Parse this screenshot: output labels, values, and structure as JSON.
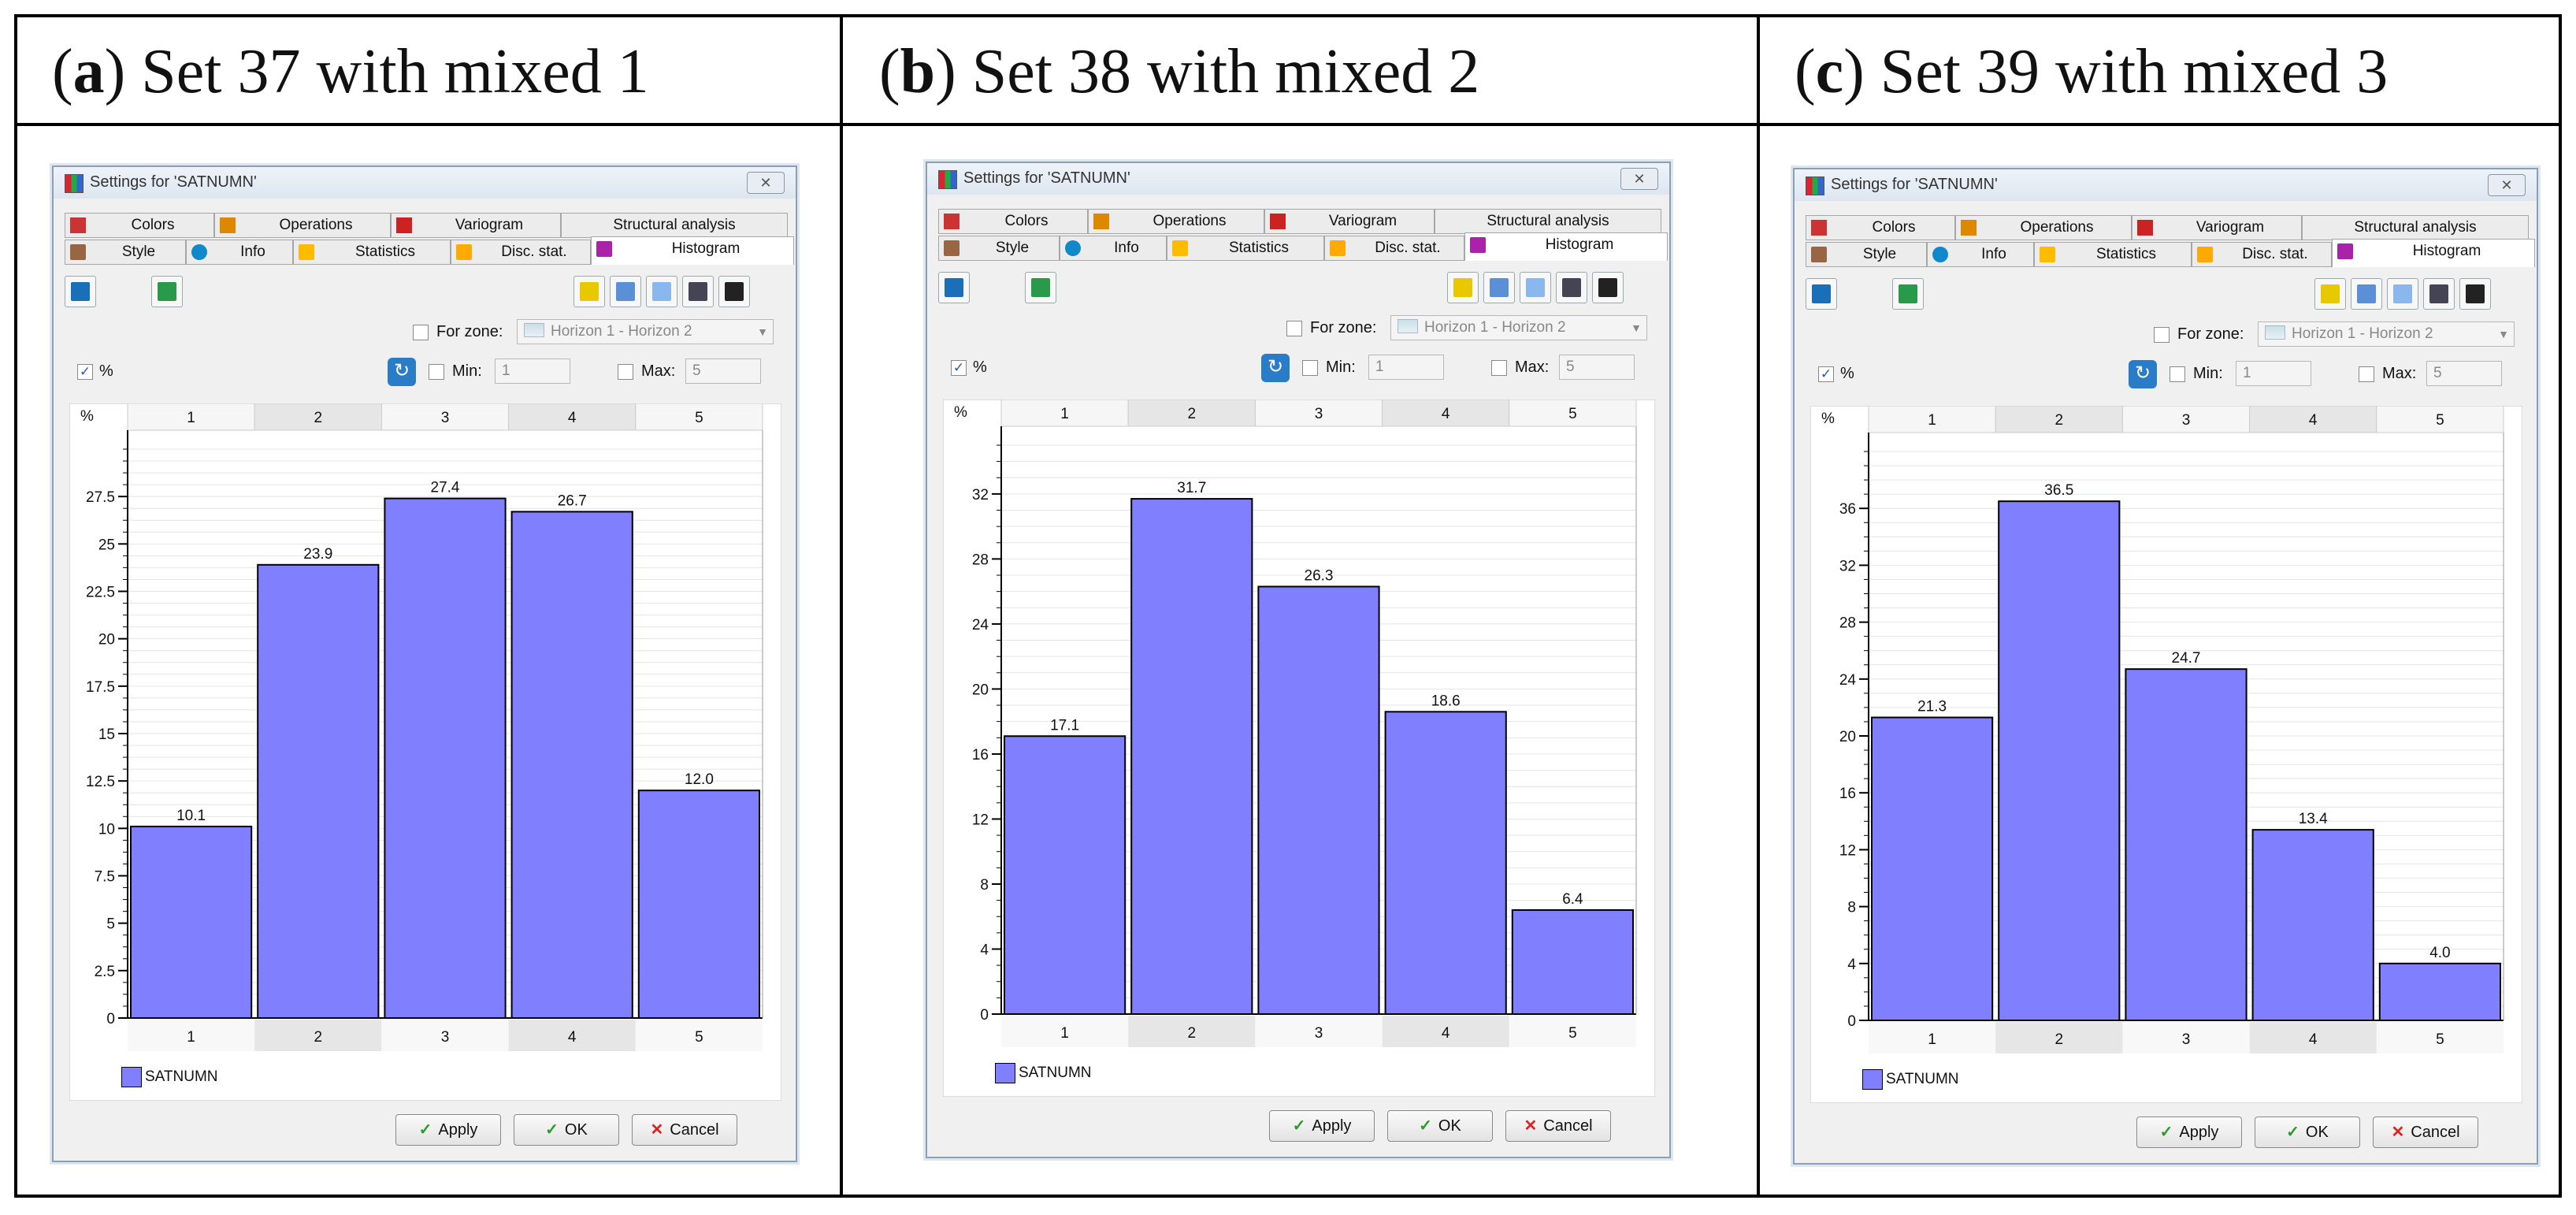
{
  "captions": [
    {
      "letter": "a",
      "text": " Set 37 with mixed 1"
    },
    {
      "letter": "b",
      "text": " Set 38 with mixed 2"
    },
    {
      "letter": "c",
      "text": " Set 39 with mixed 3"
    }
  ],
  "dialog": {
    "title": "Settings for 'SATNUMN'",
    "close_glyph": "✕",
    "tabs_row1": [
      "Colors",
      "Operations",
      "Variogram",
      "Structural analysis"
    ],
    "tabs_row2": [
      "Style",
      "Info",
      "Statistics",
      "Disc. stat.",
      "Histogram"
    ],
    "for_zone_label": "For zone:",
    "zone_value": "Horizon 1 - Horizon 2",
    "percent_label": "%",
    "min_label": "Min:",
    "min_value": "1",
    "max_label": "Max:",
    "max_value": "5",
    "legend_label": "SATNUMN",
    "apply_label": "Apply",
    "ok_label": "OK",
    "cancel_label": "Cancel",
    "icons": [
      "filter-icon",
      "color-grid-icon",
      "cube-icon",
      "ruler-icon",
      "help-icon",
      "print-icon",
      "camera-icon"
    ],
    "colors": {
      "bar": "#8080ff",
      "tab_bg": "#ececec"
    }
  },
  "chart_data": [
    {
      "type": "bar",
      "categories": [
        "1",
        "2",
        "3",
        "4",
        "5"
      ],
      "values": [
        10.1,
        23.9,
        27.4,
        26.7,
        12.0
      ],
      "value_labels": [
        "10.1",
        "23.9",
        "27.4",
        "26.7",
        "12.0"
      ],
      "ylabel": "%",
      "ylim": [
        0,
        30
      ],
      "yticks": [
        0,
        2.5,
        5,
        7.5,
        10,
        12.5,
        15,
        17.5,
        20,
        22.5,
        25,
        27.5
      ],
      "ytick_labels": [
        "0",
        "2.5",
        "5",
        "7.5",
        "10",
        "12.5",
        "15",
        "17.5",
        "20",
        "22.5",
        "25",
        "27.5"
      ],
      "series": [
        {
          "name": "SATNUMN",
          "values": [
            10.1,
            23.9,
            27.4,
            26.7,
            12.0
          ]
        }
      ],
      "legend": "bottom-left",
      "grid": true
    },
    {
      "type": "bar",
      "categories": [
        "1",
        "2",
        "3",
        "4",
        "5"
      ],
      "values": [
        17.1,
        31.7,
        26.3,
        18.6,
        6.4
      ],
      "value_labels": [
        "17.1",
        "31.7",
        "26.3",
        "18.6",
        "6.4"
      ],
      "ylabel": "%",
      "ylim": [
        0,
        35
      ],
      "yticks": [
        0,
        4,
        8,
        12,
        16,
        20,
        24,
        28,
        32
      ],
      "ytick_labels": [
        "0",
        "4",
        "8",
        "12",
        "16",
        "20",
        "24",
        "28",
        "32"
      ],
      "series": [
        {
          "name": "SATNUMN",
          "values": [
            17.1,
            31.7,
            26.3,
            18.6,
            6.4
          ]
        }
      ],
      "legend": "bottom-left",
      "grid": true
    },
    {
      "type": "bar",
      "categories": [
        "1",
        "2",
        "3",
        "4",
        "5"
      ],
      "values": [
        21.3,
        36.5,
        24.7,
        13.4,
        4.0
      ],
      "value_labels": [
        "21.3",
        "36.5",
        "24.7",
        "13.4",
        "4.0"
      ],
      "ylabel": "%",
      "ylim": [
        0,
        40
      ],
      "yticks": [
        0,
        4,
        8,
        12,
        16,
        20,
        24,
        28,
        32,
        36
      ],
      "ytick_labels": [
        "0",
        "4",
        "8",
        "12",
        "16",
        "20",
        "24",
        "28",
        "32",
        "36"
      ],
      "series": [
        {
          "name": "SATNUMN",
          "values": [
            21.3,
            36.5,
            24.7,
            13.4,
            4.0
          ]
        }
      ],
      "legend": "bottom-left",
      "grid": true
    }
  ]
}
